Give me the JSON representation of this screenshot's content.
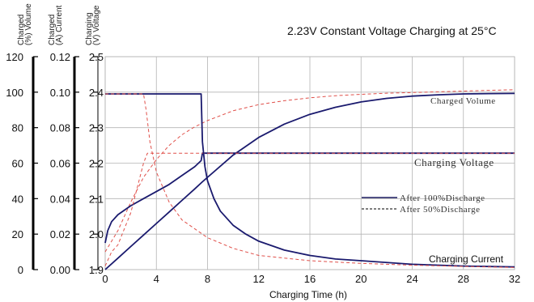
{
  "chart_data": {
    "type": "line",
    "title": "2.23V Constant Voltage Charging at 25°C",
    "xlabel": "Charging Time (h)",
    "xlim": [
      0,
      32
    ],
    "x_ticks": [
      "0",
      "4",
      "8",
      "12",
      "16",
      "20",
      "24",
      "28",
      "32"
    ],
    "axes": [
      {
        "title_lines": [
          "Charged",
          "(%) Volume"
        ],
        "ticks": [
          "0",
          "20",
          "40",
          "60",
          "80",
          "100",
          "120"
        ],
        "range": [
          0,
          120
        ]
      },
      {
        "title_lines": [
          "Charged",
          "(A) Current"
        ],
        "ticks": [
          "0.00",
          "0.02",
          "0.04",
          "0.06",
          "0.08",
          "0.10",
          "0.12"
        ],
        "range": [
          0,
          0.12
        ]
      },
      {
        "title_lines": [
          "Charging",
          "(V) Voltage"
        ],
        "ticks": [
          "1.9",
          "2.0",
          "2.1",
          "2.2",
          "2.3",
          "2.4",
          "2.5"
        ],
        "range": [
          1.9,
          2.5
        ]
      }
    ],
    "grid": true,
    "legend": {
      "placement": "center-right",
      "entries": [
        {
          "label": "After 100%Discharge",
          "style": "solid"
        },
        {
          "label": "After 50%Discharge",
          "style": "dashed"
        }
      ]
    },
    "annotations": {
      "volume": "Charged Volume",
      "voltage": "Charging Voltage",
      "current": "Charging Current"
    },
    "series": [
      {
        "name": "Charged Volume",
        "condition": "After 100%Discharge",
        "axis": 0,
        "x": [
          0,
          1,
          2,
          3,
          4,
          5,
          6,
          7,
          7.6,
          8,
          10,
          12,
          14,
          16,
          18,
          20,
          22,
          24,
          26,
          28,
          30,
          32
        ],
        "y": [
          0,
          6.5,
          13,
          19.5,
          26,
          32.5,
          39,
          45.5,
          49.5,
          52,
          64.5,
          74.5,
          82,
          87.5,
          91.5,
          94.5,
          96.5,
          97.8,
          98.5,
          99,
          99.2,
          99.3
        ]
      },
      {
        "name": "Charged Volume",
        "condition": "After 50%Discharge",
        "axis": 0,
        "x": [
          0,
          1,
          2,
          3,
          4,
          5,
          6,
          7,
          8,
          10,
          12,
          14,
          16,
          18,
          20,
          22,
          24,
          26,
          28,
          30,
          32
        ],
        "y": [
          10,
          22,
          38,
          52,
          62,
          70,
          76,
          80.5,
          84,
          89.5,
          93,
          95.2,
          96.8,
          98,
          98.8,
          99.4,
          99.8,
          100.2,
          100.6,
          101,
          101.4
        ]
      },
      {
        "name": "Charging Voltage",
        "condition": "After 100%Discharge",
        "axis": 2,
        "x": [
          0,
          0.2,
          0.5,
          1,
          2,
          3,
          4,
          5,
          6,
          7,
          7.5,
          7.6,
          7.9,
          10,
          15,
          20,
          25,
          32
        ],
        "y": [
          1.975,
          2.01,
          2.035,
          2.055,
          2.08,
          2.1,
          2.12,
          2.14,
          2.165,
          2.19,
          2.207,
          2.228,
          2.228,
          2.228,
          2.228,
          2.228,
          2.228,
          2.228
        ]
      },
      {
        "name": "Charging Voltage",
        "condition": "After 50%Discharge",
        "axis": 2,
        "x": [
          0,
          0.5,
          1,
          2,
          2.5,
          3,
          3.3,
          3.5,
          6,
          10,
          15,
          20,
          25,
          32
        ],
        "y": [
          1.91,
          1.95,
          1.97,
          2.06,
          2.13,
          2.2,
          2.228,
          2.228,
          2.228,
          2.228,
          2.228,
          2.228,
          2.228,
          2.228
        ]
      },
      {
        "name": "Charging Current",
        "condition": "After 100%Discharge",
        "axis": 1,
        "x": [
          0,
          7.5,
          7.6,
          7.8,
          8,
          8.5,
          9,
          10,
          11,
          12,
          14,
          16,
          18,
          20,
          24,
          28,
          32
        ],
        "y": [
          0.099,
          0.099,
          0.072,
          0.058,
          0.05,
          0.04,
          0.033,
          0.025,
          0.02,
          0.016,
          0.011,
          0.008,
          0.006,
          0.005,
          0.003,
          0.002,
          0.0015
        ]
      },
      {
        "name": "Charging Current",
        "condition": "After 50%Discharge",
        "axis": 1,
        "x": [
          0,
          3,
          3.2,
          3.5,
          4,
          5,
          6,
          8,
          10,
          12,
          16,
          20,
          24,
          28,
          32
        ],
        "y": [
          0.099,
          0.099,
          0.09,
          0.072,
          0.055,
          0.038,
          0.028,
          0.018,
          0.012,
          0.008,
          0.005,
          0.0035,
          0.0025,
          0.0018,
          0.0012
        ]
      }
    ]
  }
}
